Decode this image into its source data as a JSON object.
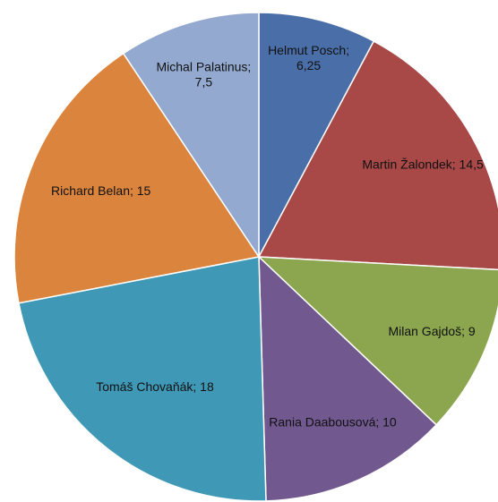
{
  "chart_data": {
    "type": "pie",
    "title": "",
    "start_angle_deg": 0,
    "direction": "clockwise",
    "legend": "none",
    "slices": [
      {
        "name": "Helmut Posch",
        "value": 6.25,
        "label_lines": [
          "Helmut Posch;",
          "6,25"
        ],
        "color": "#4A6FA8"
      },
      {
        "name": "Martin Žalondek",
        "value": 14.5,
        "label_lines": [
          "Martin Žalondek; 14,5"
        ],
        "color": "#A84847"
      },
      {
        "name": "Milan Gajdoš",
        "value": 9,
        "label_lines": [
          "Milan Gajdoš; 9"
        ],
        "color": "#8BA64F"
      },
      {
        "name": "Rania Daabousová",
        "value": 10,
        "label_lines": [
          "Rania Daabousová; 10"
        ],
        "color": "#71588F"
      },
      {
        "name": "Tomáš Chovaňák",
        "value": 18,
        "label_lines": [
          "Tomáš Chovaňák; 18"
        ],
        "color": "#3F98B5"
      },
      {
        "name": "Richard Belan",
        "value": 15,
        "label_lines": [
          "Richard Belan; 15"
        ],
        "color": "#DB843D"
      },
      {
        "name": "Michal Palatinus",
        "value": 7.5,
        "label_lines": [
          "Michal Palatinus;",
          "7,5"
        ],
        "color": "#93A9CF"
      }
    ]
  }
}
